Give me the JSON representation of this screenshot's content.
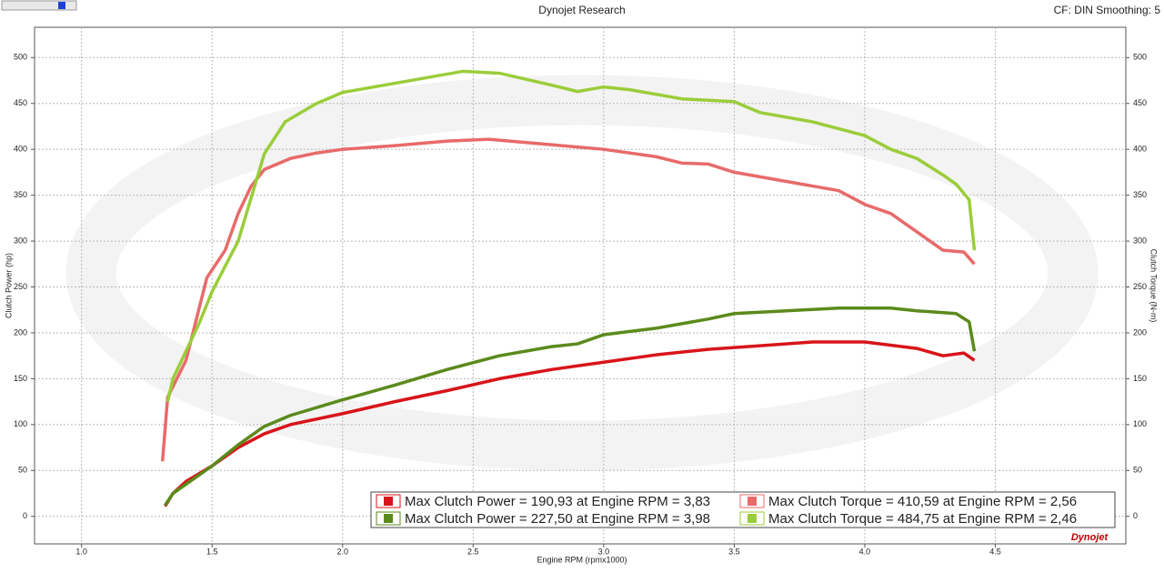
{
  "chart_data": {
    "type": "line",
    "title": "Dynojet Research",
    "subtitle": "CF: DIN Smoothing: 5",
    "x_label": "Engine RPM (rpmx1000)",
    "y_label": "Clutch Power (hp)",
    "y2_label": "Clutch Torque (N-m)",
    "logo": "Dynojet",
    "xlim": [
      0.82,
      5.0
    ],
    "xticks": [
      {
        "value": 1,
        "label": "1.0"
      },
      {
        "value": 1.5,
        "label": "1.5"
      },
      {
        "value": 2,
        "label": "2.0"
      },
      {
        "value": 2.5,
        "label": "2.5"
      },
      {
        "value": 3,
        "label": "3.0"
      },
      {
        "value": 3.5,
        "label": "3.5"
      },
      {
        "value": 4,
        "label": "4.0"
      },
      {
        "value": 4.5,
        "label": "4.5"
      }
    ],
    "ylim": [
      -30,
      533
    ],
    "yticks": [
      0,
      50,
      100,
      150,
      200,
      250,
      300,
      350,
      400,
      450,
      500
    ],
    "y2lim": [
      -30,
      533
    ],
    "y2ticks": [
      0,
      50,
      100,
      150,
      200,
      250,
      300,
      350,
      400,
      450,
      500
    ],
    "grid": true,
    "legend": "lower right",
    "series": [
      {
        "name": "Max Clutch Power = 190,93 at Engine RPM = 3,83",
        "color": "#d8141a",
        "x": [
          1.32,
          1.35,
          1.4,
          1.5,
          1.6,
          1.7,
          1.8,
          2.0,
          2.2,
          2.4,
          2.6,
          2.8,
          3.0,
          3.2,
          3.4,
          3.6,
          3.8,
          4.0,
          4.2,
          4.3,
          4.38,
          4.42
        ],
        "values": [
          11,
          25,
          38,
          55,
          75,
          90,
          100,
          112,
          125,
          137,
          150,
          160,
          168,
          176,
          182,
          186,
          190,
          190,
          183,
          175,
          178,
          170
        ]
      },
      {
        "name": "Max Clutch Power = 227,50 at Engine RPM = 3,98",
        "color": "#5b8a1c",
        "x": [
          1.32,
          1.35,
          1.4,
          1.5,
          1.6,
          1.7,
          1.8,
          2.0,
          2.2,
          2.4,
          2.6,
          2.8,
          2.9,
          3.0,
          3.2,
          3.4,
          3.5,
          3.7,
          3.9,
          4.1,
          4.2,
          4.35,
          4.4,
          4.42
        ],
        "values": [
          12,
          25,
          35,
          55,
          78,
          98,
          110,
          127,
          143,
          160,
          175,
          185,
          188,
          198,
          205,
          215,
          221,
          224,
          227,
          227,
          224,
          221,
          212,
          180
        ]
      },
      {
        "name": "Max Clutch Torque = 410,59 at Engine RPM = 2,56",
        "color": "#e86a6a",
        "x": [
          1.31,
          1.33,
          1.4,
          1.48,
          1.55,
          1.6,
          1.65,
          1.7,
          1.8,
          1.9,
          2.0,
          2.2,
          2.4,
          2.56,
          2.8,
          3.0,
          3.2,
          3.3,
          3.4,
          3.5,
          3.7,
          3.9,
          4.0,
          4.1,
          4.2,
          4.3,
          4.38,
          4.42
        ],
        "values": [
          60,
          130,
          170,
          260,
          290,
          330,
          360,
          378,
          390,
          396,
          400,
          404,
          409,
          411,
          405,
          400,
          392,
          385,
          384,
          375,
          365,
          355,
          340,
          330,
          310,
          290,
          288,
          275
        ]
      },
      {
        "name": "Max Clutch Torque = 484,75 at Engine RPM = 2,46",
        "color": "#9acd3a",
        "x": [
          1.33,
          1.35,
          1.45,
          1.5,
          1.6,
          1.7,
          1.78,
          1.9,
          2.0,
          2.2,
          2.46,
          2.6,
          2.8,
          2.9,
          3.0,
          3.1,
          3.3,
          3.5,
          3.6,
          3.8,
          4.0,
          4.1,
          4.2,
          4.3,
          4.35,
          4.4,
          4.42
        ],
        "values": [
          125,
          150,
          210,
          245,
          300,
          395,
          430,
          450,
          462,
          472,
          485,
          483,
          470,
          463,
          468,
          465,
          455,
          452,
          440,
          430,
          415,
          400,
          390,
          372,
          362,
          345,
          290
        ]
      }
    ]
  }
}
